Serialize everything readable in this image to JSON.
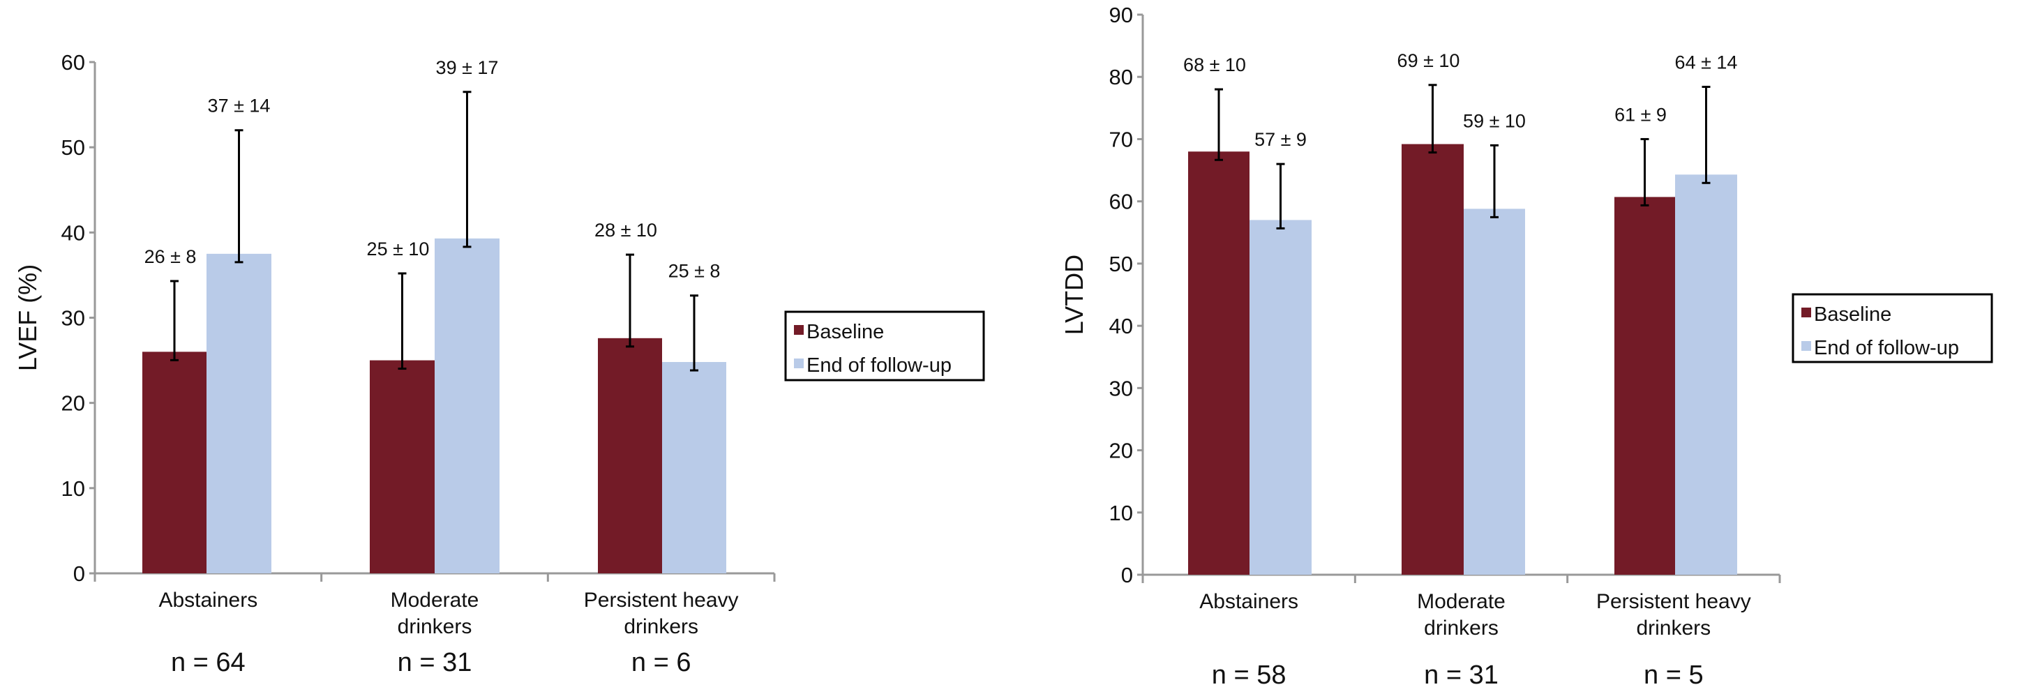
{
  "chart_data": [
    {
      "type": "bar",
      "ylabel": "LVEF (%)",
      "ylim": [
        0,
        60
      ],
      "yticks": [
        "0",
        "10",
        "20",
        "30",
        "40",
        "50",
        "60"
      ],
      "categories": [
        [
          "Abstainers"
        ],
        [
          "Moderate",
          "drinkers"
        ],
        [
          "Persistent heavy",
          "drinkers"
        ]
      ],
      "n_labels": [
        "n = 64",
        "n = 31",
        "n = 6"
      ],
      "grid": false,
      "legend": "right",
      "series": [
        {
          "name": "Baseline",
          "color": "#731b27",
          "values": [
            26,
            25,
            27.6
          ],
          "error_top": [
            34.3,
            35.2,
            37.4
          ],
          "labels": [
            "26 ± 8",
            "25 ± 10",
            "28 ± 10"
          ]
        },
        {
          "name": "End of follow-up",
          "color": "#b9cbe8",
          "values": [
            37.5,
            39.3,
            24.8
          ],
          "error_top": [
            52,
            56.5,
            32.6
          ],
          "labels": [
            "37 ± 14",
            "39 ± 17",
            "25 ± 8"
          ]
        }
      ]
    },
    {
      "type": "bar",
      "ylabel": "LVTDD",
      "ylim": [
        0,
        90
      ],
      "yticks": [
        "0",
        "10",
        "20",
        "30",
        "40",
        "50",
        "60",
        "70",
        "80",
        "90"
      ],
      "categories": [
        [
          "Abstainers"
        ],
        [
          "Moderate",
          "drinkers"
        ],
        [
          "Persistent heavy",
          "drinkers"
        ]
      ],
      "n_labels": [
        "n = 58",
        "n = 31",
        "n = 5"
      ],
      "grid": false,
      "legend": "right",
      "series": [
        {
          "name": "Baseline",
          "color": "#731b27",
          "values": [
            68,
            69.2,
            60.7
          ],
          "error_top": [
            78,
            78.7,
            70
          ],
          "labels": [
            "68 ± 10",
            "69 ± 10",
            "61 ± 9"
          ]
        },
        {
          "name": "End of follow-up",
          "color": "#b9cbe8",
          "values": [
            57,
            58.8,
            64.3
          ],
          "error_top": [
            66,
            69,
            78.4
          ],
          "labels": [
            "57 ± 9",
            "59 ± 10",
            "64 ± 14"
          ]
        }
      ]
    }
  ]
}
